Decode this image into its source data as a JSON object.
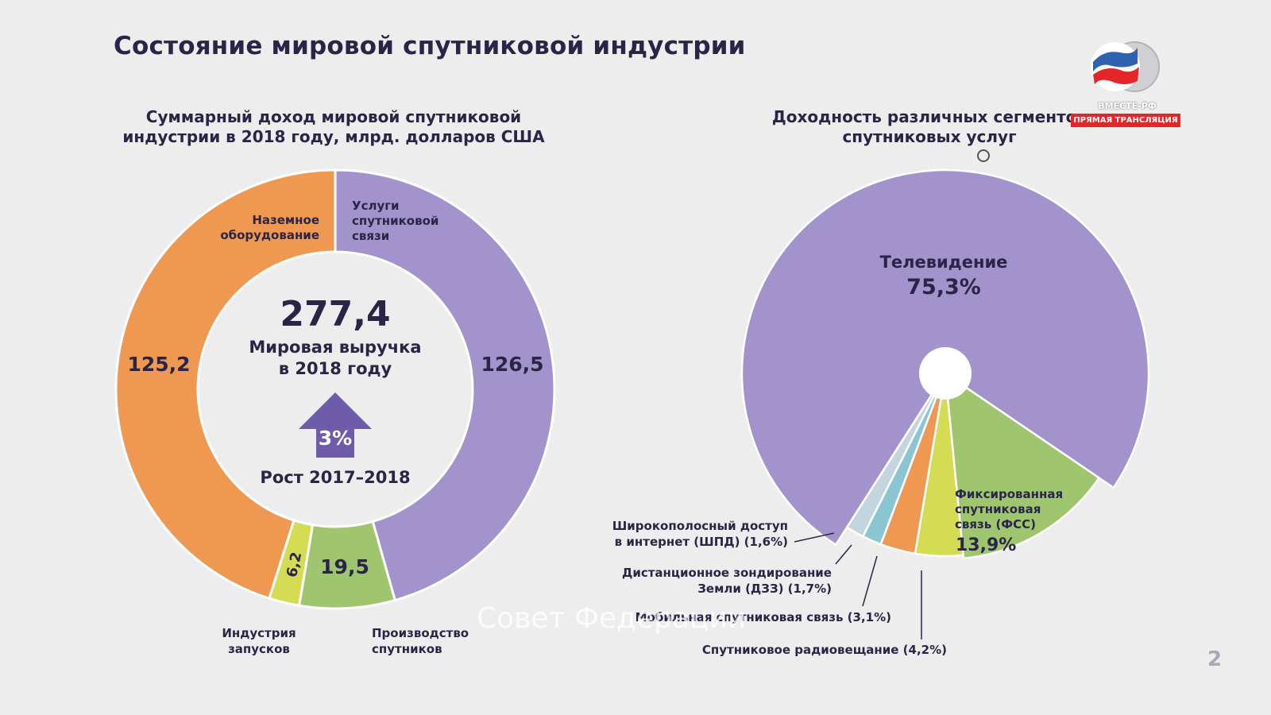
{
  "page": {
    "title": "Состояние мировой спутниковой индустрии",
    "page_number": "2",
    "watermark": "Совет Федерации"
  },
  "broadcast": {
    "brand": "ВМЕСТЕ-РФ",
    "live_label": "ПРЯМАЯ ТРАНСЛЯЦИЯ"
  },
  "chart_data": [
    {
      "type": "pie",
      "variant": "donut",
      "title_lines": [
        "Суммарный доход мировой спутниковой",
        "индустрии в 2018 году, млрд. долларов США"
      ],
      "center": {
        "total": "277,4",
        "label_lines": [
          "Мировая выручка",
          "в 2018 году"
        ],
        "growth": "3%",
        "growth_label": "Рост 2017–2018"
      },
      "slices": [
        {
          "label": "Услуги спутниковой связи",
          "label_lines": [
            "Услуги",
            "спутниковой",
            "связи"
          ],
          "value": 126.5,
          "value_text": "126,5",
          "color": "#a393cd"
        },
        {
          "label": "Производство спутников",
          "label_lines": [
            "Производство",
            "спутников"
          ],
          "value": 19.5,
          "value_text": "19,5",
          "color": "#9fc66f"
        },
        {
          "label": "Индустрия запусков",
          "label_lines": [
            "Индустрия",
            "запусков"
          ],
          "value": 6.2,
          "value_text": "6,2",
          "color": "#d3dc52"
        },
        {
          "label": "Наземное оборудование",
          "label_lines": [
            "Наземное",
            "оборудование"
          ],
          "value": 125.2,
          "value_text": "125,2",
          "color": "#ee9851"
        }
      ]
    },
    {
      "type": "pie",
      "title_lines": [
        "Доходность различных сегментов",
        "спутниковых услуг"
      ],
      "slices": [
        {
          "label": "Телевидение",
          "label_lines": [
            "Телевидение"
          ],
          "value": 75.3,
          "value_text": "75,3%",
          "color": "#a393cd"
        },
        {
          "label": "Широкополосный доступ в интернет (ШПД)",
          "label_lines": [
            "Широкополосный доступ",
            "в интернет (ШПД) (1,6%)"
          ],
          "value": 1.6,
          "value_text": "1,6%",
          "color": "#c3d6df"
        },
        {
          "label": "Дистанционное зондирование Земли (ДЗЗ)",
          "label_lines": [
            "Дистанционное зондирование",
            "Земли (ДЗЗ) (1,7%)"
          ],
          "value": 1.7,
          "value_text": "1,7%",
          "color": "#8cc5d2"
        },
        {
          "label": "Мобильная спутниковая связь",
          "label_lines": [
            "Мобильная спутниковая связь (3,1%)"
          ],
          "value": 3.1,
          "value_text": "3,1%",
          "color": "#ee9851"
        },
        {
          "label": "Спутниковое радиовещание",
          "label_lines": [
            "Спутниковое радиовещание (4,2%)"
          ],
          "value": 4.2,
          "value_text": "4,2%",
          "color": "#d3dc52"
        },
        {
          "label": "Фиксированная спутниковая связь (ФСС)",
          "label_lines": [
            "Фиксированная",
            "спутниковая",
            "связь (ФСС)"
          ],
          "value": 13.9,
          "value_text": "13,9%",
          "color": "#9fc66f"
        }
      ]
    }
  ]
}
